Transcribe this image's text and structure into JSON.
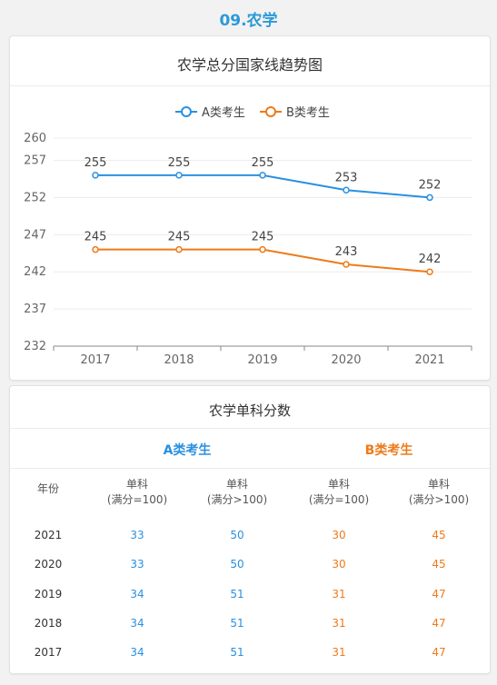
{
  "section_title": "09.农学",
  "chart_card": {
    "title": "农学总分国家线趋势图"
  },
  "chart_data": {
    "type": "line",
    "title": "农学总分国家线趋势图",
    "categories": [
      "2017",
      "2018",
      "2019",
      "2020",
      "2021"
    ],
    "series": [
      {
        "name": "A类考生",
        "color": "#2a90e0",
        "values": [
          255,
          255,
          255,
          253,
          252
        ]
      },
      {
        "name": "B类考生",
        "color": "#ee7a1a",
        "values": [
          245,
          245,
          245,
          243,
          242
        ]
      }
    ],
    "ylim": [
      232,
      260
    ],
    "yticks": [
      232,
      237,
      242,
      247,
      252,
      257,
      260
    ],
    "legend_position": "top-center",
    "grid": true
  },
  "table_card": {
    "title": "农学单科分数",
    "group_a": "A类考生",
    "group_b": "B类考生",
    "headers": {
      "year": "年份",
      "col1_line1": "单科",
      "col1_line2": "(满分=100)",
      "col2_line1": "单科",
      "col2_line2": "(满分>100)",
      "col3_line1": "单科",
      "col3_line2": "(满分=100)",
      "col4_line1": "单科",
      "col4_line2": "(满分>100)"
    },
    "rows": [
      {
        "year": "2021",
        "a100": "33",
        "a_gt100": "50",
        "b100": "30",
        "b_gt100": "45"
      },
      {
        "year": "2020",
        "a100": "33",
        "a_gt100": "50",
        "b100": "30",
        "b_gt100": "45"
      },
      {
        "year": "2019",
        "a100": "34",
        "a_gt100": "51",
        "b100": "31",
        "b_gt100": "47"
      },
      {
        "year": "2018",
        "a100": "34",
        "a_gt100": "51",
        "b100": "31",
        "b_gt100": "47"
      },
      {
        "year": "2017",
        "a100": "34",
        "a_gt100": "51",
        "b100": "31",
        "b_gt100": "47"
      }
    ]
  }
}
